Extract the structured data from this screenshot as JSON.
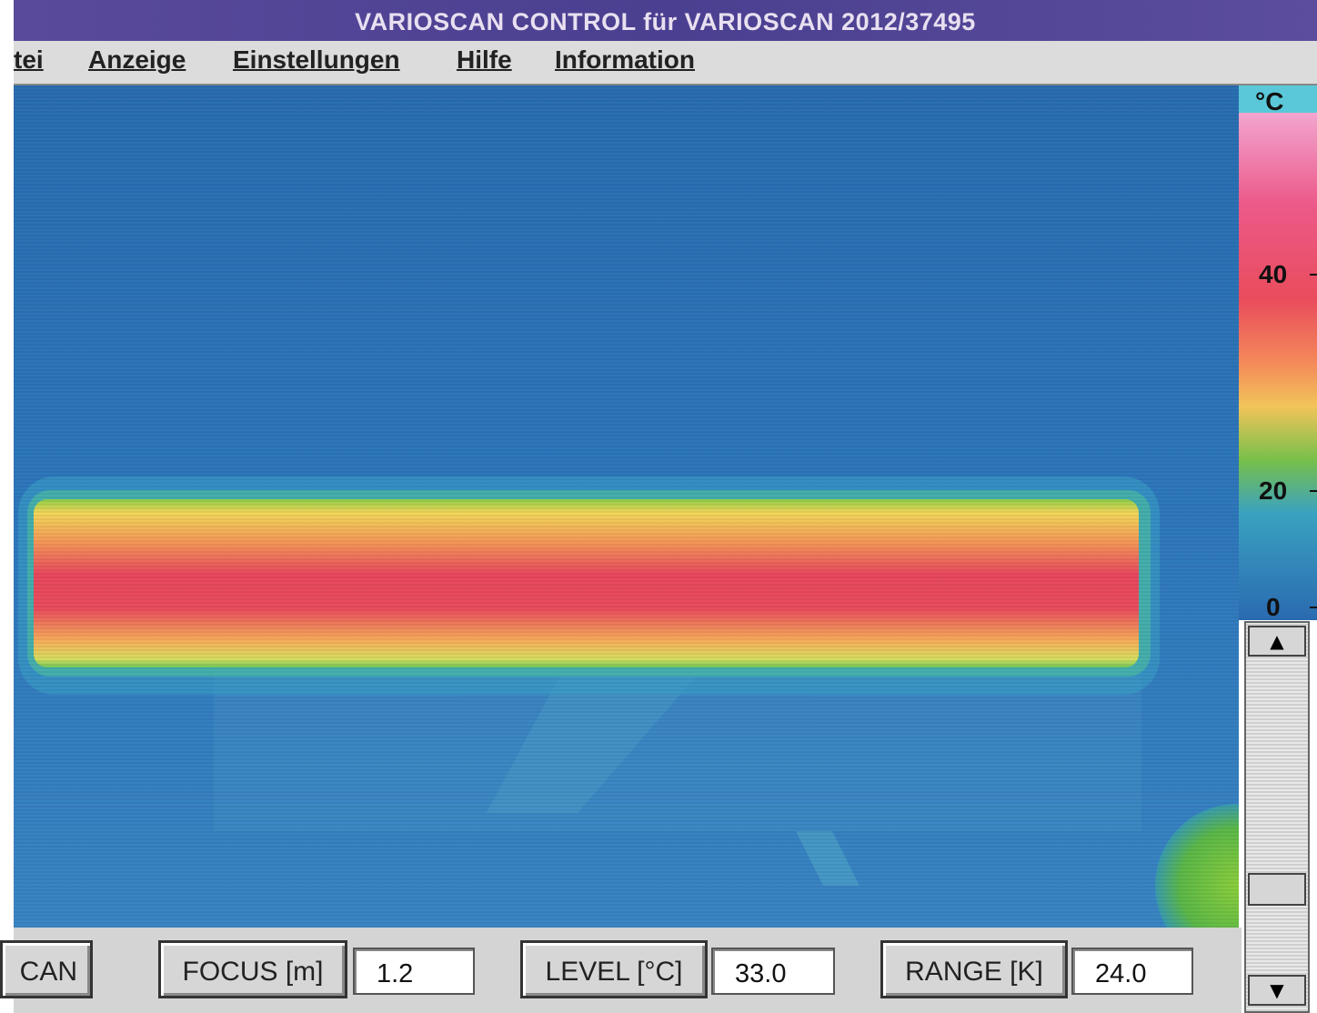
{
  "window": {
    "title": "VARIOSCAN CONTROL  für VARIOSCAN 2012/37495"
  },
  "menu": [
    "tei",
    "Anzeige",
    "Einstellungen",
    "Hilfe",
    "Information"
  ],
  "scale": {
    "unit": "°C",
    "ticks": [
      "40",
      "20",
      "0"
    ]
  },
  "controls": [
    {
      "button": "CAN"
    },
    {
      "button": "FOCUS [m]",
      "field": "1.2"
    },
    {
      "button": "LEVEL [°C]",
      "field": "33.0"
    },
    {
      "button": "RANGE [K]",
      "field": "24.0"
    }
  ]
}
